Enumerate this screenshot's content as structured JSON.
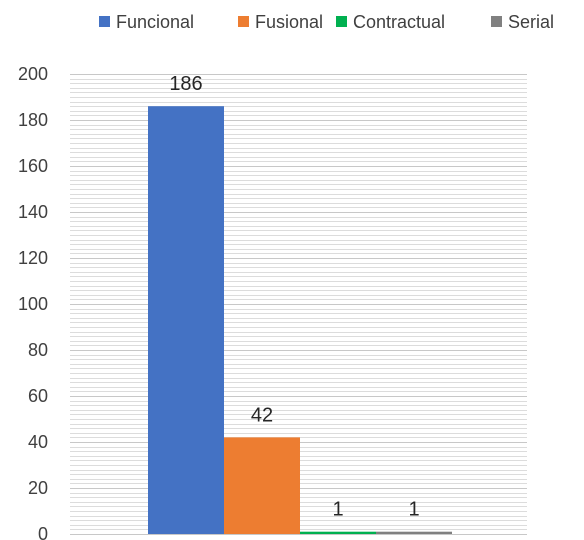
{
  "chart_data": {
    "type": "bar",
    "categories": [
      ""
    ],
    "series": [
      {
        "name": "Funcional",
        "values": [
          186
        ],
        "color": "#4472C4",
        "label": "186"
      },
      {
        "name": "Fusional",
        "values": [
          42
        ],
        "color": "#ED7D31",
        "label": "42"
      },
      {
        "name": "Contractual",
        "values": [
          1
        ],
        "color": "#00B050",
        "label": "1"
      },
      {
        "name": "Serial",
        "values": [
          1
        ],
        "color": "#808080",
        "label": "1"
      }
    ],
    "title": "",
    "xlabel": "",
    "ylabel": "",
    "ylim": [
      0,
      200
    ],
    "yticks": [
      "0",
      "20",
      "40",
      "60",
      "80",
      "100",
      "120",
      "140",
      "160",
      "180",
      "200"
    ],
    "grid": "horizontal-minor",
    "legend_position": "top"
  }
}
